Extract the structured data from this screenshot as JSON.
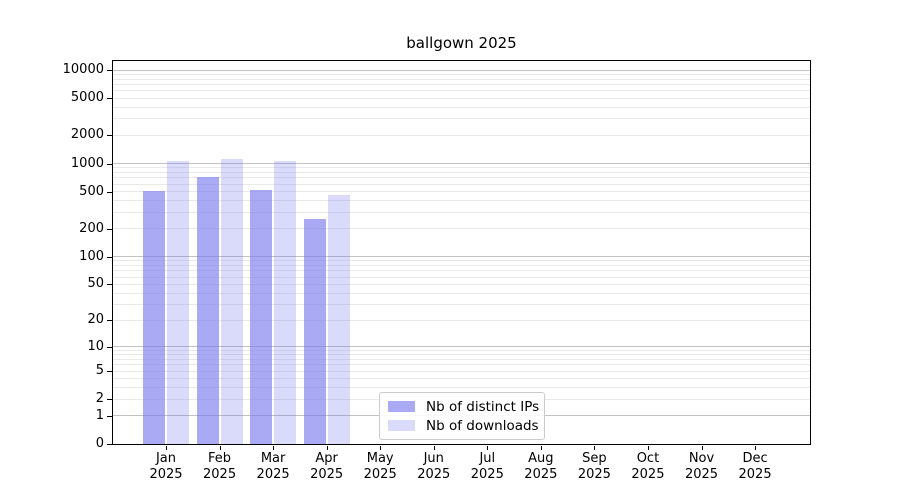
{
  "chart_data": {
    "type": "bar",
    "title": "ballgown 2025",
    "categories": [
      "Jan",
      "Feb",
      "Mar",
      "Apr",
      "May",
      "Jun",
      "Jul",
      "Aug",
      "Sep",
      "Oct",
      "Nov",
      "Dec"
    ],
    "category_year": "2025",
    "series": [
      {
        "name": "Nb of distinct IPs",
        "color": "#7777ee",
        "alpha": 0.63,
        "values": [
          505,
          720,
          525,
          255,
          null,
          null,
          null,
          null,
          null,
          null,
          null,
          null
        ]
      },
      {
        "name": "Nb of downloads",
        "color": "#7777ee",
        "alpha": 0.27,
        "values": [
          1065,
          1130,
          1060,
          460,
          null,
          null,
          null,
          null,
          null,
          null,
          null,
          null
        ]
      }
    ],
    "yscale": "log1p",
    "yticks": [
      0,
      1,
      2,
      5,
      10,
      20,
      50,
      100,
      200,
      500,
      1000,
      2000,
      5000,
      10000
    ],
    "ylim": [
      0,
      12500
    ],
    "grid": {
      "major_values": [
        1,
        10,
        100,
        1000,
        10000
      ],
      "major_color": "#c2c2c2",
      "minor_color": "#e9e9e9"
    },
    "legend_position": "bottom-center",
    "axis_color": "#000000",
    "background_color": "#ffffff"
  }
}
